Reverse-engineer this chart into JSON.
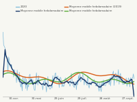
{
  "x_ticks_labels": [
    "30-avr.",
    "30-mai",
    "29-juin",
    "29-juil.",
    "28-août",
    "27-sept."
  ],
  "n_points": 185,
  "legend": [
    {
      "label": "2020",
      "color": "#7ab8d9",
      "lw": 0.55
    },
    {
      "label": "Moyenne mobile hebdomadaire",
      "color": "#1a3a6b",
      "lw": 1.0
    },
    {
      "label": "Moyenne mobile hebdomadaire (2019)",
      "color": "#d95f1a",
      "lw": 1.0
    },
    {
      "label": "Moyenne mobile hebdomadaire",
      "color": "#5aab3a",
      "lw": 1.0
    }
  ],
  "bg_color": "#f7f7f2",
  "plot_bg": "#f7f7f2",
  "ylim": [
    30,
    110
  ],
  "figsize": [
    2.0,
    1.5
  ],
  "dpi": 100
}
